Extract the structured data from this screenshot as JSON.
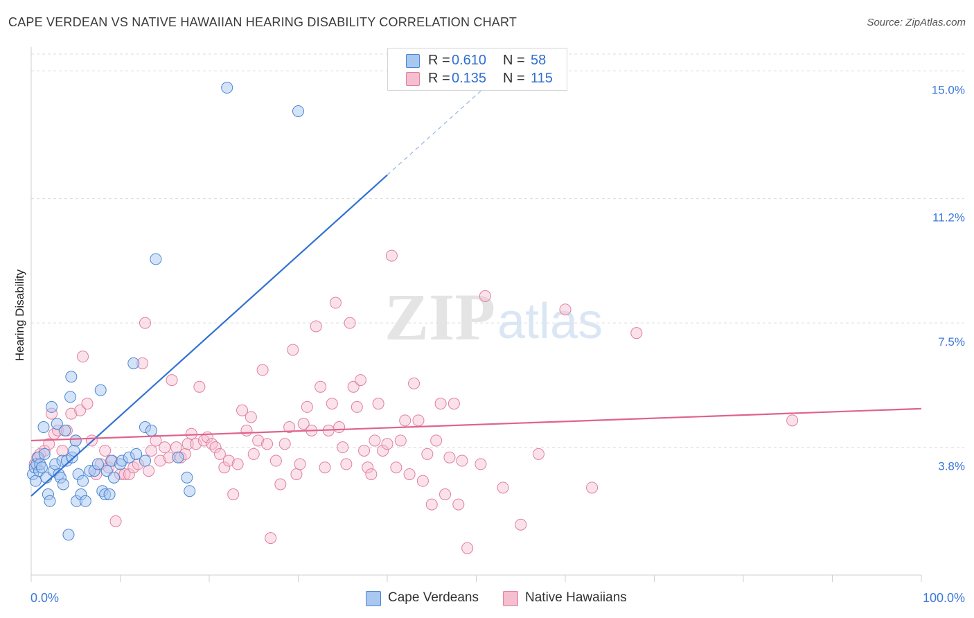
{
  "title": "CAPE VERDEAN VS NATIVE HAWAIIAN HEARING DISABILITY CORRELATION CHART",
  "source": "Source: ZipAtlas.com",
  "watermark": {
    "zip": "ZIP",
    "atlas": "atlas"
  },
  "legend": {
    "series1": {
      "r_label": "R =",
      "r_value": "0.610",
      "n_label": "N =",
      "n_value": "58"
    },
    "series2": {
      "r_label": "R =",
      "r_value": "0.135",
      "n_label": "N =",
      "n_value": "115"
    }
  },
  "bottom_legend": {
    "series1": "Cape Verdeans",
    "series2": "Native Hawaiians"
  },
  "colors": {
    "series1_fill": "#a9c8f0",
    "series1_stroke": "#4a86d4",
    "series1_line": "#2f72d3",
    "series2_fill": "#f6bfd0",
    "series2_stroke": "#e07f9f",
    "series2_line": "#e0628d",
    "grid": "#dcdcdc",
    "axis_text": "#3c78d8"
  },
  "chart_data": {
    "type": "scatter",
    "title": "CAPE VERDEAN VS NATIVE HAWAIIAN HEARING DISABILITY CORRELATION CHART",
    "xlabel": "",
    "ylabel": "Hearing Disability",
    "xlim": [
      0,
      100
    ],
    "ylim": [
      0.0,
      15.5
    ],
    "x_tick_labels": [
      "0.0%",
      "100.0%"
    ],
    "y_ticks": [
      3.8,
      7.5,
      11.2,
      15.0
    ],
    "y_tick_labels": [
      "3.8%",
      "7.5%",
      "11.2%",
      "15.0%"
    ],
    "grid": true,
    "legend_position": "top-center",
    "series": [
      {
        "name": "Cape Verdeans",
        "R": 0.61,
        "N": 58,
        "trend": {
          "x0": 0,
          "y0": 2.35,
          "x1": 40,
          "y1": 11.9,
          "dash_to_x": 50.5,
          "dash_to_y": 14.4
        },
        "points": [
          [
            0.2,
            3.0
          ],
          [
            0.4,
            3.2
          ],
          [
            0.5,
            2.8
          ],
          [
            0.6,
            3.3
          ],
          [
            0.8,
            3.5
          ],
          [
            0.9,
            3.1
          ],
          [
            1.0,
            3.3
          ],
          [
            1.2,
            3.2
          ],
          [
            1.4,
            4.4
          ],
          [
            1.5,
            3.6
          ],
          [
            1.7,
            2.9
          ],
          [
            1.9,
            2.4
          ],
          [
            2.1,
            2.2
          ],
          [
            2.3,
            5.0
          ],
          [
            2.5,
            3.1
          ],
          [
            2.7,
            3.3
          ],
          [
            2.9,
            4.5
          ],
          [
            3.1,
            3.0
          ],
          [
            3.3,
            2.9
          ],
          [
            3.5,
            3.4
          ],
          [
            3.6,
            2.7
          ],
          [
            3.8,
            4.3
          ],
          [
            4.0,
            3.4
          ],
          [
            4.2,
            1.2
          ],
          [
            4.4,
            5.3
          ],
          [
            4.5,
            5.9
          ],
          [
            4.6,
            3.5
          ],
          [
            4.8,
            3.7
          ],
          [
            5.0,
            4.0
          ],
          [
            5.1,
            2.2
          ],
          [
            5.3,
            3.0
          ],
          [
            5.6,
            2.4
          ],
          [
            5.8,
            2.8
          ],
          [
            6.1,
            2.2
          ],
          [
            6.6,
            3.1
          ],
          [
            7.1,
            3.1
          ],
          [
            7.5,
            3.3
          ],
          [
            7.8,
            5.5
          ],
          [
            8.0,
            2.5
          ],
          [
            8.3,
            2.4
          ],
          [
            8.5,
            3.1
          ],
          [
            8.8,
            2.4
          ],
          [
            9.0,
            3.4
          ],
          [
            9.3,
            2.9
          ],
          [
            10.0,
            3.3
          ],
          [
            10.2,
            3.4
          ],
          [
            11.0,
            3.5
          ],
          [
            11.5,
            6.3
          ],
          [
            11.8,
            3.6
          ],
          [
            12.8,
            3.4
          ],
          [
            12.8,
            4.4
          ],
          [
            13.5,
            4.3
          ],
          [
            14.0,
            9.4
          ],
          [
            16.5,
            3.5
          ],
          [
            17.5,
            2.9
          ],
          [
            17.8,
            2.5
          ],
          [
            22.0,
            14.5
          ],
          [
            30.0,
            13.8
          ]
        ]
      },
      {
        "name": "Native Hawaiians",
        "R": 0.135,
        "N": 115,
        "trend": {
          "x0": 0,
          "y0": 4.0,
          "x1": 100,
          "y1": 4.95
        },
        "points": [
          [
            0.4,
            3.3
          ],
          [
            0.7,
            3.5
          ],
          [
            1.0,
            3.6
          ],
          [
            1.5,
            3.7
          ],
          [
            2.0,
            3.9
          ],
          [
            2.3,
            4.8
          ],
          [
            2.6,
            4.2
          ],
          [
            3.0,
            4.3
          ],
          [
            3.5,
            3.7
          ],
          [
            4.0,
            4.3
          ],
          [
            4.5,
            4.8
          ],
          [
            5.0,
            4.0
          ],
          [
            5.5,
            4.9
          ],
          [
            5.8,
            6.5
          ],
          [
            6.3,
            5.1
          ],
          [
            6.8,
            4.0
          ],
          [
            7.3,
            3.0
          ],
          [
            7.8,
            3.3
          ],
          [
            8.3,
            3.7
          ],
          [
            8.7,
            3.2
          ],
          [
            9.1,
            3.4
          ],
          [
            9.5,
            1.6
          ],
          [
            10.0,
            3.0
          ],
          [
            10.5,
            3.0
          ],
          [
            11.0,
            3.0
          ],
          [
            11.5,
            3.2
          ],
          [
            12.0,
            3.3
          ],
          [
            12.5,
            6.3
          ],
          [
            12.8,
            7.5
          ],
          [
            13.2,
            3.1
          ],
          [
            13.5,
            3.7
          ],
          [
            14.0,
            4.0
          ],
          [
            14.5,
            3.4
          ],
          [
            15.0,
            3.8
          ],
          [
            15.5,
            3.5
          ],
          [
            15.8,
            5.8
          ],
          [
            16.3,
            3.8
          ],
          [
            16.8,
            3.5
          ],
          [
            17.3,
            3.6
          ],
          [
            17.6,
            3.9
          ],
          [
            18.0,
            4.2
          ],
          [
            18.5,
            3.9
          ],
          [
            18.9,
            5.6
          ],
          [
            19.4,
            4.0
          ],
          [
            19.8,
            4.1
          ],
          [
            20.3,
            3.9
          ],
          [
            20.7,
            3.8
          ],
          [
            21.2,
            3.6
          ],
          [
            21.7,
            3.2
          ],
          [
            22.2,
            3.4
          ],
          [
            22.7,
            2.4
          ],
          [
            23.2,
            3.3
          ],
          [
            23.7,
            4.9
          ],
          [
            24.2,
            4.3
          ],
          [
            24.7,
            4.7
          ],
          [
            25.0,
            3.6
          ],
          [
            25.5,
            4.0
          ],
          [
            26.0,
            6.1
          ],
          [
            26.5,
            3.9
          ],
          [
            26.9,
            1.1
          ],
          [
            27.5,
            3.4
          ],
          [
            28.0,
            2.7
          ],
          [
            28.5,
            3.9
          ],
          [
            29.0,
            4.4
          ],
          [
            29.4,
            6.7
          ],
          [
            29.8,
            3.0
          ],
          [
            30.2,
            3.3
          ],
          [
            30.6,
            4.5
          ],
          [
            31.0,
            5.0
          ],
          [
            31.5,
            4.3
          ],
          [
            32.0,
            7.4
          ],
          [
            32.5,
            5.6
          ],
          [
            33.0,
            3.2
          ],
          [
            33.4,
            4.3
          ],
          [
            33.8,
            5.1
          ],
          [
            34.2,
            8.1
          ],
          [
            34.6,
            4.4
          ],
          [
            35.0,
            3.8
          ],
          [
            35.4,
            3.3
          ],
          [
            35.8,
            7.5
          ],
          [
            36.2,
            5.6
          ],
          [
            36.6,
            5.0
          ],
          [
            37.0,
            5.8
          ],
          [
            37.4,
            3.7
          ],
          [
            37.8,
            3.2
          ],
          [
            38.2,
            3.0
          ],
          [
            38.6,
            4.0
          ],
          [
            39.0,
            5.1
          ],
          [
            39.5,
            3.7
          ],
          [
            40.0,
            3.9
          ],
          [
            40.5,
            9.5
          ],
          [
            41.0,
            3.2
          ],
          [
            41.5,
            4.0
          ],
          [
            42.0,
            4.6
          ],
          [
            42.5,
            3.0
          ],
          [
            43.0,
            5.7
          ],
          [
            43.5,
            4.6
          ],
          [
            44.0,
            2.8
          ],
          [
            44.5,
            3.6
          ],
          [
            45.0,
            2.1
          ],
          [
            45.5,
            4.0
          ],
          [
            46.0,
            5.1
          ],
          [
            46.5,
            2.4
          ],
          [
            47.0,
            3.5
          ],
          [
            47.5,
            5.1
          ],
          [
            48.0,
            2.1
          ],
          [
            48.4,
            3.4
          ],
          [
            49.0,
            0.8
          ],
          [
            50.5,
            3.3
          ],
          [
            51.0,
            8.3
          ],
          [
            53.0,
            2.6
          ],
          [
            55.0,
            1.5
          ],
          [
            57.0,
            3.6
          ],
          [
            60.0,
            7.9
          ],
          [
            63.0,
            2.6
          ],
          [
            68.0,
            7.2
          ],
          [
            85.5,
            4.6
          ]
        ]
      }
    ]
  }
}
